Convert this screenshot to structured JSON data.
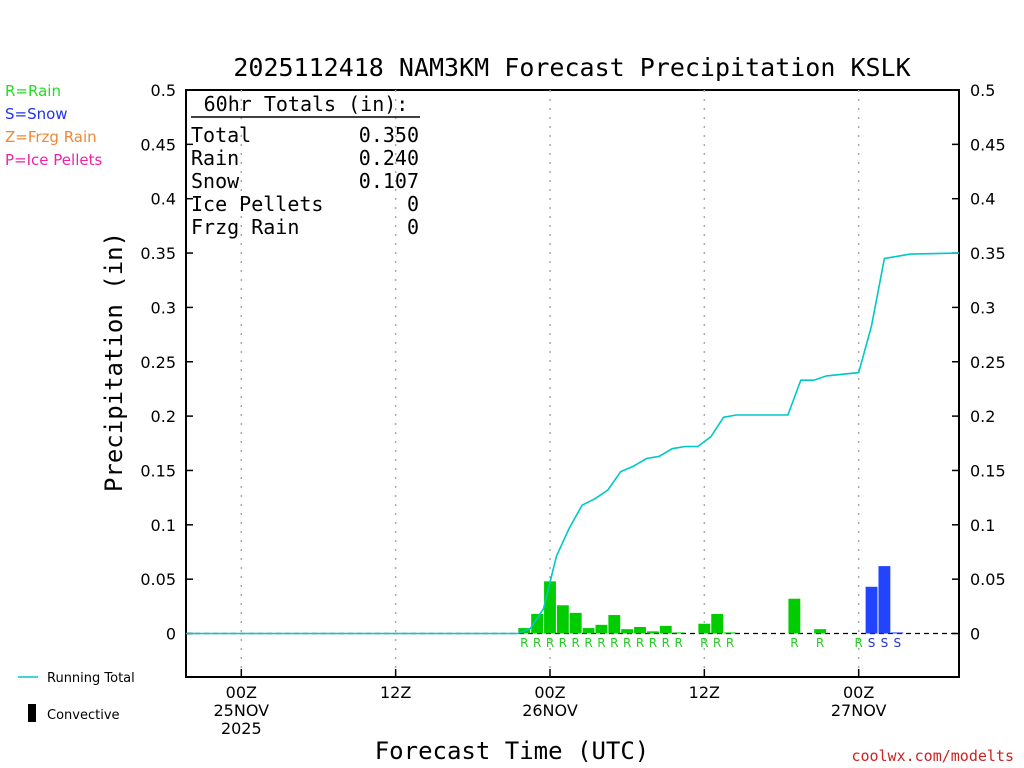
{
  "chart_data": {
    "type": "bar",
    "title": "2025112418 NAM3KM Forecast Precipitation KSLK",
    "xlabel": "Forecast Time (UTC)",
    "ylabel": "Precipitation (in)",
    "ylim": [
      -0.04,
      0.5
    ],
    "yticks": [
      "0",
      "0.05",
      "0.1",
      "0.15",
      "0.2",
      "0.25",
      "0.3",
      "0.35",
      "0.4",
      "0.45",
      "0.5"
    ],
    "ytick_values": [
      0,
      0.05,
      0.1,
      0.15,
      0.2,
      0.25,
      0.3,
      0.35,
      0.4,
      0.45,
      0.5
    ],
    "xlim_hours": [
      -4.3,
      55.8
    ],
    "xticks": [
      {
        "hour": 0,
        "lines": [
          "00Z",
          "25NOV",
          "2025"
        ]
      },
      {
        "hour": 12,
        "lines": [
          "12Z"
        ]
      },
      {
        "hour": 24,
        "lines": [
          "00Z",
          "26NOV"
        ]
      },
      {
        "hour": 36,
        "lines": [
          "12Z"
        ]
      },
      {
        "hour": 48,
        "lines": [
          "00Z",
          "27NOV"
        ]
      }
    ],
    "totals_box": {
      "header": "60hr Totals (in):",
      "rows": [
        {
          "label": "Total",
          "value": "0.350"
        },
        {
          "label": "Rain",
          "value": "0.240"
        },
        {
          "label": "Snow",
          "value": "0.107"
        },
        {
          "label": "Ice Pellets",
          "value": "0"
        },
        {
          "label": "Frzg Rain",
          "value": "0"
        }
      ]
    },
    "type_legend": [
      {
        "text": "R=Rain",
        "color": "#22dd22"
      },
      {
        "text": "S=Snow",
        "color": "#2233ee"
      },
      {
        "text": "Z=Frzg Rain",
        "color": "#ee8833"
      },
      {
        "text": "P=Ice Pellets",
        "color": "#ee22aa"
      }
    ],
    "line_legend": "Running Total",
    "bar_legend": "Convective",
    "credit": "coolwx.com/modelts",
    "colors": {
      "rain": "#00cc00",
      "snow": "#2244ff",
      "running_total": "#00c8c8",
      "grid": "#aaaaaa",
      "rain_text": "#22cc22",
      "snow_text": "#2233cc",
      "credit": "#cc2222"
    },
    "series": [
      {
        "name": "Hourly precipitation",
        "points": [
          {
            "hour": 22,
            "value": 0.005,
            "ptype": "R"
          },
          {
            "hour": 23,
            "value": 0.018,
            "ptype": "R"
          },
          {
            "hour": 24,
            "value": 0.048,
            "ptype": "R"
          },
          {
            "hour": 25,
            "value": 0.026,
            "ptype": "R"
          },
          {
            "hour": 26,
            "value": 0.019,
            "ptype": "R"
          },
          {
            "hour": 27,
            "value": 0.005,
            "ptype": "R"
          },
          {
            "hour": 28,
            "value": 0.008,
            "ptype": "R"
          },
          {
            "hour": 29,
            "value": 0.017,
            "ptype": "R"
          },
          {
            "hour": 30,
            "value": 0.004,
            "ptype": "R"
          },
          {
            "hour": 31,
            "value": 0.006,
            "ptype": "R"
          },
          {
            "hour": 32,
            "value": 0.002,
            "ptype": "R"
          },
          {
            "hour": 33,
            "value": 0.007,
            "ptype": "R"
          },
          {
            "hour": 34,
            "value": 0.001,
            "ptype": "R"
          },
          {
            "hour": 35,
            "value": 0,
            "ptype": ""
          },
          {
            "hour": 36,
            "value": 0.009,
            "ptype": "R"
          },
          {
            "hour": 37,
            "value": 0.018,
            "ptype": "R"
          },
          {
            "hour": 38,
            "value": 0.001,
            "ptype": "R"
          },
          {
            "hour": 43,
            "value": 0.032,
            "ptype": "R"
          },
          {
            "hour": 45,
            "value": 0.004,
            "ptype": "R"
          },
          {
            "hour": 48,
            "value": 0,
            "ptype": "R"
          },
          {
            "hour": 49,
            "value": 0.043,
            "ptype": "S"
          },
          {
            "hour": 50,
            "value": 0.062,
            "ptype": "S"
          },
          {
            "hour": 51,
            "value": 0.001,
            "ptype": "S"
          }
        ]
      },
      {
        "name": "Running Total",
        "points": [
          {
            "hour": -5,
            "value": 0
          },
          {
            "hour": 21.5,
            "value": 0
          },
          {
            "hour": 22.5,
            "value": 0.005
          },
          {
            "hour": 23.5,
            "value": 0.023
          },
          {
            "hour": 24.5,
            "value": 0.071
          },
          {
            "hour": 25.5,
            "value": 0.097
          },
          {
            "hour": 26.5,
            "value": 0.118
          },
          {
            "hour": 27.5,
            "value": 0.124
          },
          {
            "hour": 28.5,
            "value": 0.132
          },
          {
            "hour": 29.5,
            "value": 0.149
          },
          {
            "hour": 30.5,
            "value": 0.154
          },
          {
            "hour": 31.5,
            "value": 0.161
          },
          {
            "hour": 32.5,
            "value": 0.163
          },
          {
            "hour": 33.5,
            "value": 0.17
          },
          {
            "hour": 34.5,
            "value": 0.172
          },
          {
            "hour": 35.5,
            "value": 0.172
          },
          {
            "hour": 36.5,
            "value": 0.181
          },
          {
            "hour": 37.5,
            "value": 0.199
          },
          {
            "hour": 38.5,
            "value": 0.201
          },
          {
            "hour": 42.5,
            "value": 0.201
          },
          {
            "hour": 43.5,
            "value": 0.233
          },
          {
            "hour": 44.5,
            "value": 0.233
          },
          {
            "hour": 45.5,
            "value": 0.237
          },
          {
            "hour": 48,
            "value": 0.24
          },
          {
            "hour": 49,
            "value": 0.283
          },
          {
            "hour": 50,
            "value": 0.345
          },
          {
            "hour": 51,
            "value": 0.347
          },
          {
            "hour": 52,
            "value": 0.349
          },
          {
            "hour": 56,
            "value": 0.35
          }
        ]
      }
    ]
  }
}
